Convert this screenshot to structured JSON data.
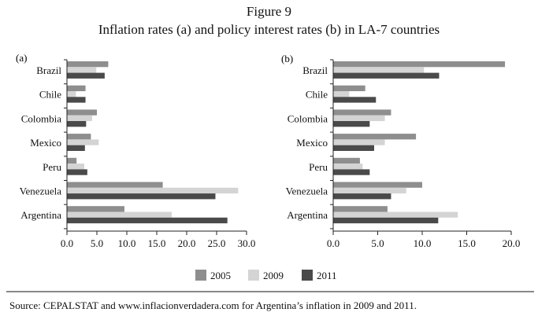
{
  "figure": {
    "title": "Figure 9",
    "subtitle": "Inflation rates (a) and policy interest rates (b) in LA-7 countries",
    "source": "Source: CEPALSTAT and www.inflacionverdadera.com for Argentina’s inflation in 2009 and 2011."
  },
  "colors": {
    "y2005": "#8e8e8e",
    "y2009": "#d4d4d4",
    "y2011": "#4a4a4a",
    "axis": "#222222"
  },
  "chart_data": [
    {
      "type": "bar",
      "orientation": "horizontal",
      "panel_label": "(a)",
      "title": "Inflation rates",
      "categories": [
        "Brazil",
        "Chile",
        "Colombia",
        "Mexico",
        "Peru",
        "Venezuela",
        "Argentina"
      ],
      "series": [
        {
          "name": "2005",
          "values": [
            6.9,
            3.1,
            5.0,
            4.0,
            1.6,
            16.0,
            9.6
          ]
        },
        {
          "name": "2009",
          "values": [
            4.9,
            1.5,
            4.2,
            5.3,
            2.9,
            28.6,
            17.5
          ]
        },
        {
          "name": "2011",
          "values": [
            6.3,
            3.1,
            3.2,
            3.0,
            3.4,
            24.8,
            26.8
          ]
        }
      ],
      "xlim": [
        0,
        30
      ],
      "xticks": [
        "0.0",
        "5.0",
        "10.0",
        "15.0",
        "20.0",
        "25.0",
        "30.0"
      ]
    },
    {
      "type": "bar",
      "orientation": "horizontal",
      "panel_label": "(b)",
      "title": "Policy interest rates",
      "categories": [
        "Brazil",
        "Chile",
        "Colombia",
        "Mexico",
        "Peru",
        "Venezuela",
        "Argentina"
      ],
      "series": [
        {
          "name": "2005",
          "values": [
            19.3,
            3.6,
            6.5,
            9.3,
            3.0,
            10.0,
            6.1
          ]
        },
        {
          "name": "2009",
          "values": [
            10.2,
            1.8,
            5.8,
            5.8,
            3.3,
            8.2,
            14.0
          ]
        },
        {
          "name": "2011",
          "values": [
            11.9,
            4.8,
            4.1,
            4.6,
            4.1,
            6.5,
            11.8
          ]
        }
      ],
      "xlim": [
        0,
        20
      ],
      "xticks": [
        "0.0",
        "5.0",
        "10.0",
        "15.0",
        "20.0"
      ]
    }
  ],
  "legend": [
    {
      "label": "2005"
    },
    {
      "label": "2009"
    },
    {
      "label": "2011"
    }
  ]
}
